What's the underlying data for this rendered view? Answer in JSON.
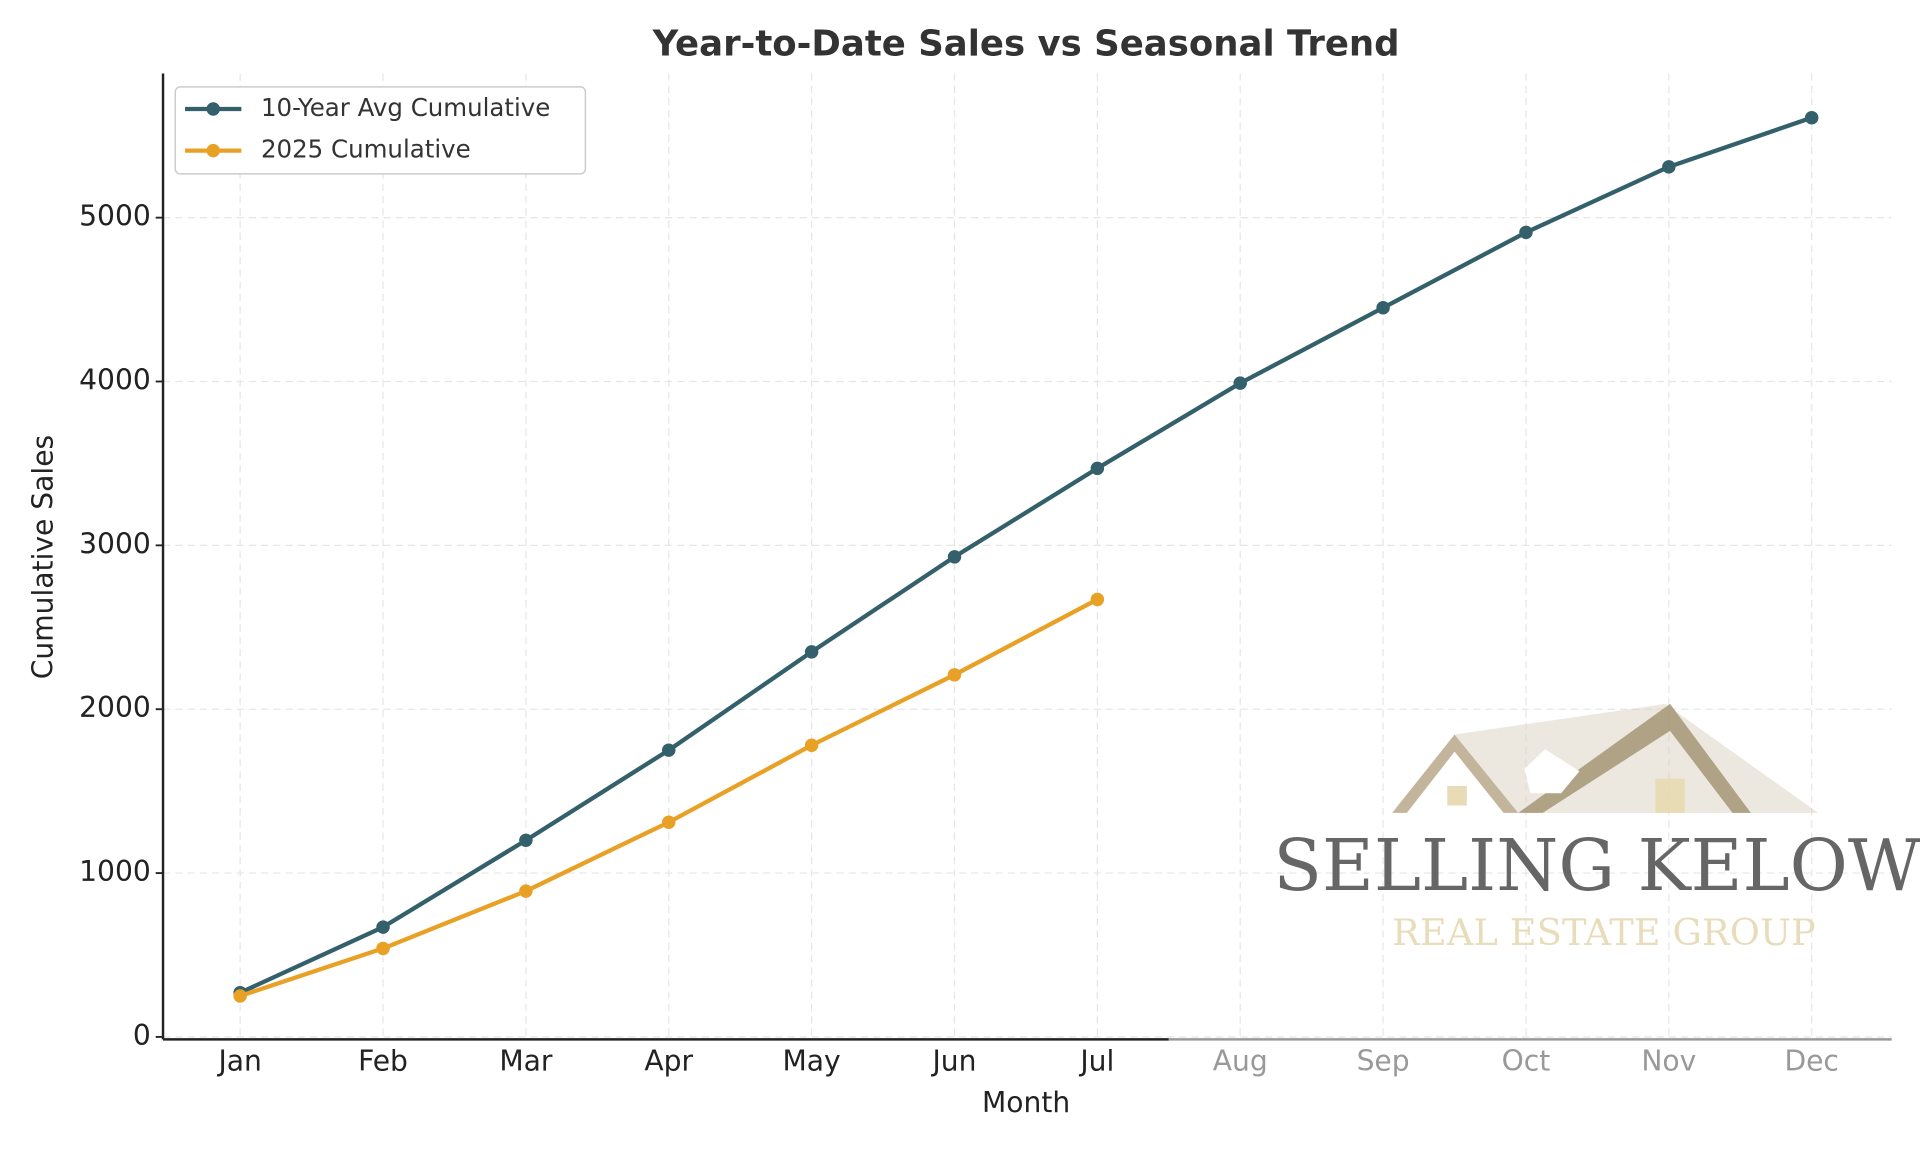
{
  "chart_data": {
    "type": "line",
    "title": "Year-to-Date Sales vs Seasonal Trend",
    "x_label": "Month",
    "y_label": "Cumulative Sales",
    "categories": [
      "Jan",
      "Feb",
      "Mar",
      "Apr",
      "May",
      "Jun",
      "Jul",
      "Aug",
      "Sep",
      "Oct",
      "Nov",
      "Dec"
    ],
    "series": [
      {
        "name": "10-Year Avg Cumulative",
        "color": "#33606a",
        "values": [
          270,
          670,
          1200,
          1750,
          2350,
          2930,
          3470,
          3990,
          4450,
          4910,
          5310,
          5610
        ]
      },
      {
        "name": "2025 Cumulative",
        "color": "#e8a125",
        "values": [
          250,
          540,
          890,
          1310,
          1780,
          2210,
          2670,
          null,
          null,
          null,
          null,
          null
        ]
      }
    ],
    "ylim": [
      0,
      5880
    ],
    "yticks": [
      0,
      1000,
      2000,
      3000,
      4000,
      5000
    ],
    "grid": true,
    "legend": "upper left",
    "watermark": {
      "title": "SELLING KELOWNA",
      "subtitle": "REAL ESTATE GROUP"
    }
  }
}
